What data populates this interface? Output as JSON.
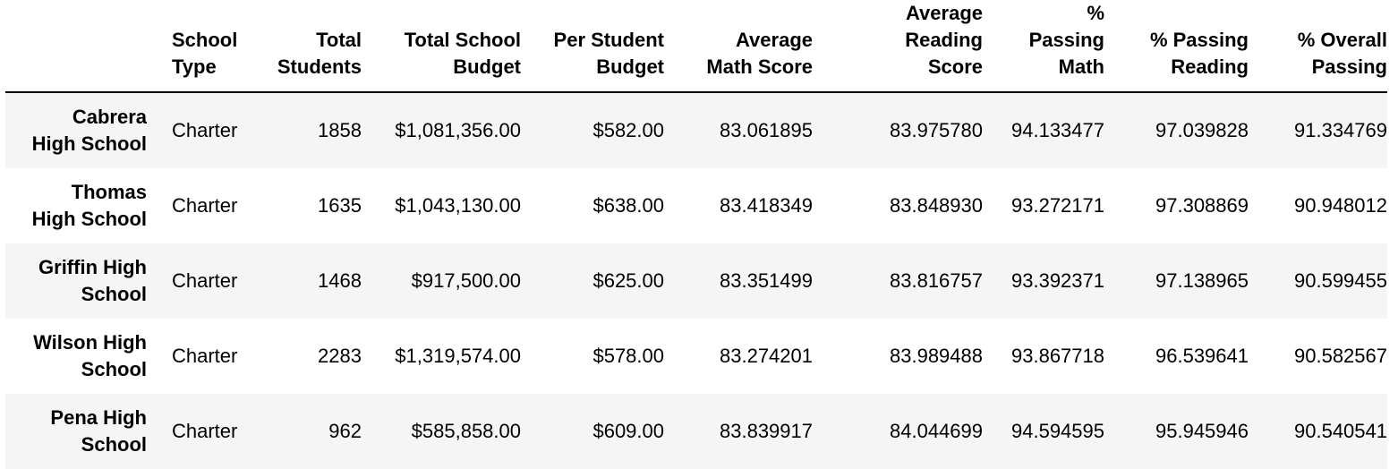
{
  "table": {
    "columns": [
      "",
      "School\nType",
      "Total\nStudents",
      "Total School\nBudget",
      "Per Student\nBudget",
      "Average\nMath Score",
      "Average\nReading\nScore",
      "%\nPassing\nMath",
      "% Passing\nReading",
      "% Overall\nPassing"
    ],
    "rows": [
      {
        "name": "Cabrera\nHigh School",
        "type": "Charter",
        "students": "1858",
        "budget": "$1,081,356.00",
        "per_student": "$582.00",
        "math": "83.061895",
        "reading": "83.975780",
        "pass_math": "94.133477",
        "pass_reading": "97.039828",
        "pass_overall": "91.334769"
      },
      {
        "name": "Thomas\nHigh School",
        "type": "Charter",
        "students": "1635",
        "budget": "$1,043,130.00",
        "per_student": "$638.00",
        "math": "83.418349",
        "reading": "83.848930",
        "pass_math": "93.272171",
        "pass_reading": "97.308869",
        "pass_overall": "90.948012"
      },
      {
        "name": "Griffin High\nSchool",
        "type": "Charter",
        "students": "1468",
        "budget": "$917,500.00",
        "per_student": "$625.00",
        "math": "83.351499",
        "reading": "83.816757",
        "pass_math": "93.392371",
        "pass_reading": "97.138965",
        "pass_overall": "90.599455"
      },
      {
        "name": "Wilson High\nSchool",
        "type": "Charter",
        "students": "2283",
        "budget": "$1,319,574.00",
        "per_student": "$578.00",
        "math": "83.274201",
        "reading": "83.989488",
        "pass_math": "93.867718",
        "pass_reading": "96.539641",
        "pass_overall": "90.582567"
      },
      {
        "name": "Pena High\nSchool",
        "type": "Charter",
        "students": "962",
        "budget": "$585,858.00",
        "per_student": "$609.00",
        "math": "83.839917",
        "reading": "84.044699",
        "pass_math": "94.594595",
        "pass_reading": "95.945946",
        "pass_overall": "90.540541"
      }
    ]
  }
}
